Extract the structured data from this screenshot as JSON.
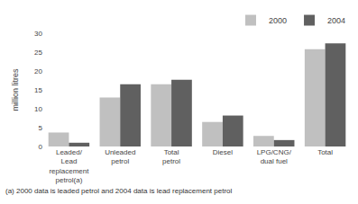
{
  "chart_data": {
    "type": "bar",
    "categories": [
      "Leaded/\nLead\nreplacement\npetrol(a)",
      "Unleaded\npetrol",
      "Total\npetrol",
      "Diesel",
      "LPG/CNG/\ndual fuel",
      "Total"
    ],
    "series": [
      {
        "name": "2000",
        "color": "#c0c0c0",
        "values": [
          3.7,
          13.0,
          16.5,
          6.5,
          2.8,
          25.8
        ]
      },
      {
        "name": "2004",
        "color": "#606060",
        "values": [
          1.0,
          16.5,
          17.7,
          8.2,
          1.7,
          27.3
        ]
      }
    ],
    "ylabel": "million litres",
    "ylim": [
      0,
      30
    ],
    "yticks": [
      0,
      5,
      10,
      15,
      20,
      25,
      30
    ],
    "grid": false,
    "legend": "upper right",
    "annotations": [
      "(a) 2000 data is leaded petrol and 2004 data is lead replacement petrol"
    ]
  }
}
